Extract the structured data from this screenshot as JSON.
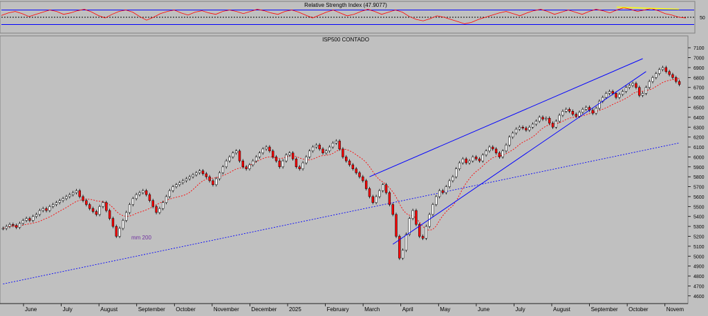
{
  "chart_data": [
    {
      "type": "line",
      "panel": "indicator",
      "title": "Relative Strength Index (47.9077)",
      "ylim": [
        10,
        90
      ],
      "y_ticks": [
        "50"
      ],
      "reference_lines": [
        30,
        50,
        70
      ],
      "series": [
        {
          "color": "#ff0000",
          "x": [
            0,
            1,
            2,
            3,
            4,
            5,
            6,
            7,
            8,
            9,
            10,
            11,
            12,
            13,
            14,
            15,
            16,
            17,
            18,
            19,
            20,
            21,
            22,
            23,
            24,
            25,
            26,
            27,
            28,
            29,
            30,
            31,
            32,
            33,
            34,
            35,
            36,
            37,
            38,
            39,
            40,
            41,
            42,
            43,
            44,
            45,
            46,
            47,
            48,
            49,
            50,
            51,
            52,
            53,
            54,
            55,
            56,
            57,
            58,
            59,
            60,
            61,
            62,
            63,
            64,
            65,
            66,
            67,
            68,
            69,
            70,
            71,
            72,
            73,
            74,
            75,
            76,
            77,
            78,
            79,
            80,
            81,
            82,
            83,
            84,
            85,
            86,
            87,
            88,
            89,
            90,
            91,
            92,
            93,
            94,
            95,
            96,
            97,
            98,
            99
          ],
          "values": [
            55,
            62,
            66,
            60,
            52,
            58,
            64,
            70,
            66,
            58,
            62,
            68,
            72,
            65,
            55,
            48,
            58,
            66,
            70,
            64,
            52,
            42,
            50,
            60,
            66,
            70,
            62,
            56,
            64,
            68,
            62,
            58,
            66,
            70,
            66,
            60,
            66,
            72,
            68,
            62,
            58,
            66,
            70,
            64,
            56,
            48,
            56,
            64,
            70,
            62,
            54,
            58,
            66,
            72,
            66,
            58,
            64,
            70,
            64,
            52,
            44,
            40,
            46,
            54,
            50,
            44,
            38,
            32,
            36,
            44,
            50,
            56,
            62,
            66,
            60,
            54,
            62,
            68,
            72,
            66,
            58,
            64,
            70,
            64,
            58,
            66,
            72,
            68,
            62,
            70,
            76,
            72,
            66,
            70,
            74,
            68,
            60,
            56,
            50,
            48
          ]
        },
        {
          "color": "#ffff00",
          "x": [
            89,
            98
          ],
          "values": [
            78,
            72
          ]
        }
      ]
    },
    {
      "type": "candlestick",
      "panel": "price",
      "title": "ISP500 CONTADO",
      "ylim": [
        4550,
        7150
      ],
      "y_ticks": [
        "7100",
        "7000",
        "6900",
        "6800",
        "6700",
        "6600",
        "6500",
        "6400",
        "6300",
        "6200",
        "6100",
        "6000",
        "5900",
        "5800",
        "5700",
        "5600",
        "5500",
        "5400",
        "5300",
        "5200",
        "5100",
        "5000",
        "4900",
        "4800",
        "4700",
        "4600"
      ],
      "x_ticks": [
        "June",
        "July",
        "August",
        "September",
        "October",
        "November",
        "December",
        "2025",
        "February",
        "March",
        "April",
        "May",
        "June",
        "July",
        "August",
        "September",
        "October",
        "Novem"
      ],
      "annotations": [
        {
          "text": "mm 200"
        }
      ],
      "close": [
        5280,
        5300,
        5320,
        5310,
        5290,
        5330,
        5360,
        5380,
        5360,
        5400,
        5420,
        5460,
        5480,
        5460,
        5500,
        5520,
        5540,
        5560,
        5580,
        5600,
        5620,
        5640,
        5660,
        5600,
        5560,
        5520,
        5480,
        5450,
        5420,
        5500,
        5540,
        5460,
        5380,
        5300,
        5200,
        5280,
        5360,
        5440,
        5520,
        5580,
        5620,
        5640,
        5660,
        5620,
        5560,
        5500,
        5440,
        5480,
        5540,
        5600,
        5660,
        5700,
        5720,
        5740,
        5760,
        5780,
        5800,
        5820,
        5840,
        5860,
        5830,
        5800,
        5760,
        5720,
        5780,
        5840,
        5900,
        5960,
        6000,
        6040,
        6060,
        5960,
        5900,
        5880,
        5920,
        5960,
        6000,
        6040,
        6080,
        6100,
        6060,
        6000,
        5960,
        5900,
        5960,
        6020,
        6040,
        5980,
        5900,
        5880,
        5940,
        6000,
        6060,
        6100,
        6120,
        6080,
        6040,
        6060,
        6100,
        6140,
        6160,
        6080,
        6000,
        5960,
        5920,
        5880,
        5840,
        5800,
        5760,
        5680,
        5600,
        5540,
        5600,
        5660,
        5720,
        5640,
        5520,
        5420,
        5200,
        4980,
        5060,
        5220,
        5380,
        5460,
        5320,
        5200,
        5180,
        5300,
        5420,
        5520,
        5600,
        5660,
        5640,
        5700,
        5760,
        5800,
        5880,
        5940,
        5980,
        5940,
        5960,
        6000,
        5980,
        5960,
        6020,
        6060,
        6100,
        6080,
        6040,
        6000,
        6060,
        6120,
        6200,
        6240,
        6280,
        6300,
        6290,
        6270,
        6300,
        6330,
        6360,
        6400,
        6380,
        6390,
        6340,
        6300,
        6360,
        6420,
        6460,
        6480,
        6460,
        6430,
        6410,
        6450,
        6480,
        6500,
        6470,
        6440,
        6490,
        6560,
        6600,
        6640,
        6660,
        6640,
        6600,
        6630,
        6660,
        6700,
        6720,
        6740,
        6700,
        6620,
        6640,
        6700,
        6760,
        6800,
        6840,
        6880,
        6900,
        6860,
        6830,
        6800,
        6760,
        6730
      ],
      "sma_50_color": "#ff0000",
      "sma_200_color": "#0000ff",
      "trendlines": [
        {
          "color": "#0000ff",
          "from": [
            110,
            5800
          ],
          "to": [
            192,
            6990
          ]
        },
        {
          "color": "#0000ff",
          "from": [
            117,
            5120
          ],
          "to": [
            193,
            6860
          ]
        }
      ]
    }
  ]
}
